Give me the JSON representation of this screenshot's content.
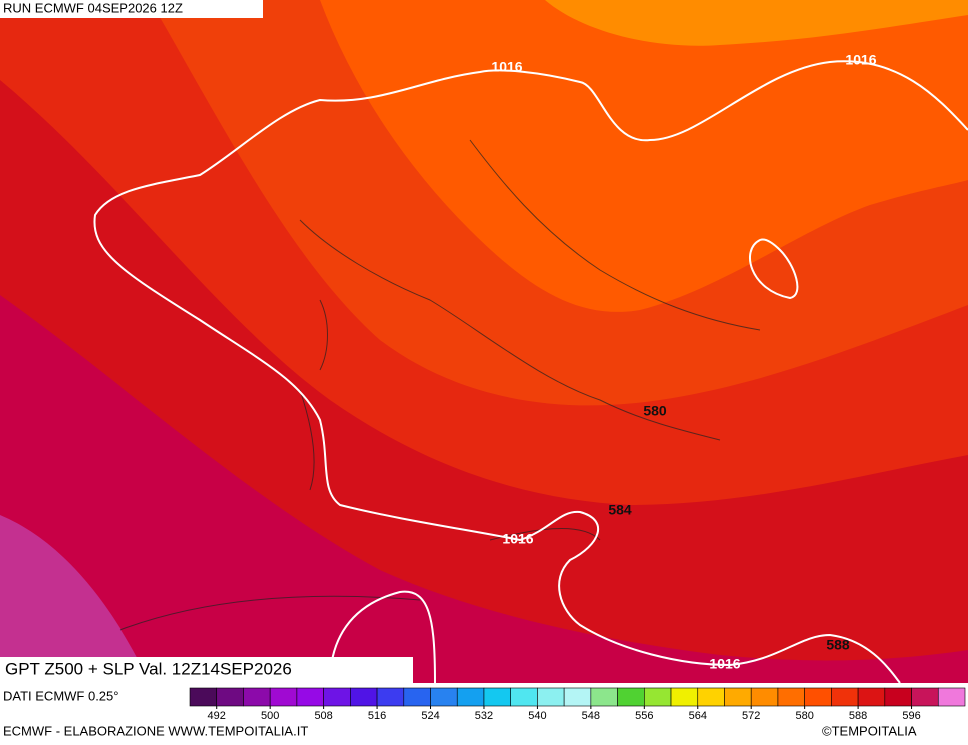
{
  "header": {
    "run": "RUN ECMWF 04SEP2026 12Z",
    "title": "GPT Z500 + SLP Val. 12Z14SEP2026",
    "source": "DATI ECMWF 0.25°",
    "credit": "ECMWF - ELABORAZIONE WWW.TEMPOITALIA.IT",
    "copyright": "©TEMPOITALIA"
  },
  "isobar_labels": [
    "1016",
    "1016",
    "1016",
    "1016"
  ],
  "height_labels": [
    "580",
    "584",
    "588"
  ],
  "colorbar": {
    "range": [
      488,
      604
    ],
    "ticks": [
      492,
      500,
      508,
      516,
      524,
      532,
      540,
      548,
      556,
      564,
      572,
      580,
      588,
      596
    ],
    "colors": [
      "#4b0a5a",
      "#6e0a82",
      "#8c0aaa",
      "#a00ad2",
      "#960ae6",
      "#6e14e6",
      "#5014e6",
      "#3c3cf0",
      "#2864f0",
      "#2882f0",
      "#14a0f0",
      "#14c8f0",
      "#50e6f0",
      "#8cf0f0",
      "#b4f5f5",
      "#8ce68c",
      "#50d232",
      "#96e632",
      "#f0f000",
      "#ffd200",
      "#ffaa00",
      "#ff8c00",
      "#ff6e00",
      "#ff5000",
      "#f0320a",
      "#dc1414",
      "#c8001e",
      "#c8145a",
      "#f078dc"
    ]
  }
}
